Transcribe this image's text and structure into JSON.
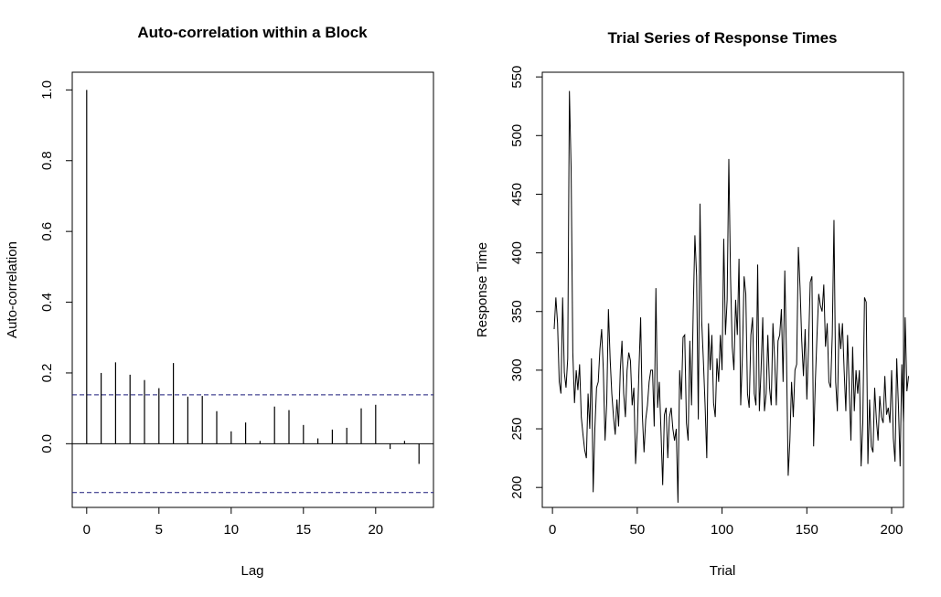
{
  "chart_data": [
    {
      "type": "bar",
      "title": "Auto-correlation within a Block",
      "xlabel": "Lag",
      "ylabel": "Auto-correlation",
      "xlim": [
        -1,
        24
      ],
      "ylim": [
        -0.18,
        1.05
      ],
      "x_ticks": [
        "0",
        "5",
        "10",
        "15",
        "20"
      ],
      "y_ticks": [
        "0.0",
        "0.2",
        "0.4",
        "0.6",
        "0.8",
        "1.0"
      ],
      "x": [
        0,
        1,
        2,
        3,
        4,
        5,
        6,
        7,
        8,
        9,
        10,
        11,
        12,
        13,
        14,
        15,
        16,
        17,
        18,
        19,
        20,
        21,
        22,
        23
      ],
      "values": [
        1.0,
        0.2,
        0.23,
        0.195,
        0.18,
        0.157,
        0.228,
        0.133,
        0.135,
        0.092,
        0.035,
        0.06,
        0.008,
        0.105,
        0.095,
        0.053,
        0.015,
        0.04,
        0.045,
        0.1,
        0.11,
        -0.015,
        0.008,
        -0.057
      ],
      "confidence_band": [
        -0.138,
        0.138
      ],
      "band_color": "#1a1a7a",
      "grid": false
    },
    {
      "type": "line",
      "title": "Trial Series of Response Times",
      "xlabel": "Trial",
      "ylabel": "Response Time",
      "xlim": [
        -6,
        207
      ],
      "ylim": [
        183,
        554
      ],
      "x_ticks": [
        "0",
        "50",
        "100",
        "150",
        "200"
      ],
      "y_ticks": [
        "200",
        "250",
        "300",
        "350",
        "400",
        "450",
        "500",
        "550"
      ],
      "x_start": 1,
      "values": [
        335,
        362,
        340,
        290,
        280,
        362,
        298,
        285,
        310,
        538,
        472,
        315,
        272,
        300,
        283,
        305,
        260,
        245,
        232,
        225,
        280,
        250,
        310,
        196,
        250,
        285,
        290,
        318,
        335,
        300,
        240,
        272,
        352,
        310,
        280,
        260,
        245,
        275,
        252,
        300,
        325,
        280,
        260,
        300,
        315,
        308,
        270,
        285,
        220,
        248,
        300,
        345,
        262,
        230,
        258,
        270,
        290,
        300,
        300,
        252,
        370,
        268,
        290,
        248,
        202,
        262,
        268,
        225,
        260,
        268,
        250,
        240,
        250,
        187,
        300,
        275,
        328,
        330,
        255,
        240,
        325,
        270,
        350,
        415,
        380,
        258,
        442,
        342,
        308,
        270,
        225,
        340,
        300,
        330,
        272,
        260,
        310,
        290,
        330,
        300,
        412,
        330,
        360,
        480,
        380,
        320,
        300,
        360,
        330,
        395,
        270,
        312,
        380,
        365,
        280,
        268,
        330,
        345,
        280,
        270,
        390,
        265,
        300,
        345,
        265,
        280,
        330,
        285,
        270,
        340,
        310,
        270,
        325,
        330,
        352,
        290,
        385,
        312,
        210,
        240,
        290,
        260,
        300,
        305,
        405,
        370,
        325,
        295,
        335,
        275,
        320,
        375,
        380,
        235,
        290,
        330,
        365,
        355,
        350,
        373,
        320,
        340,
        290,
        285,
        330,
        428,
        290,
        265,
        340,
        318,
        340,
        300,
        265,
        330,
        285,
        240,
        320,
        265,
        300,
        280,
        300,
        218,
        255,
        362,
        358,
        220,
        275,
        235,
        230,
        285,
        258,
        240,
        278,
        260,
        255,
        295,
        262,
        268,
        255,
        300,
        242,
        222,
        310,
        270,
        218,
        305,
        255,
        345,
        282,
        295
      ]
    }
  ]
}
